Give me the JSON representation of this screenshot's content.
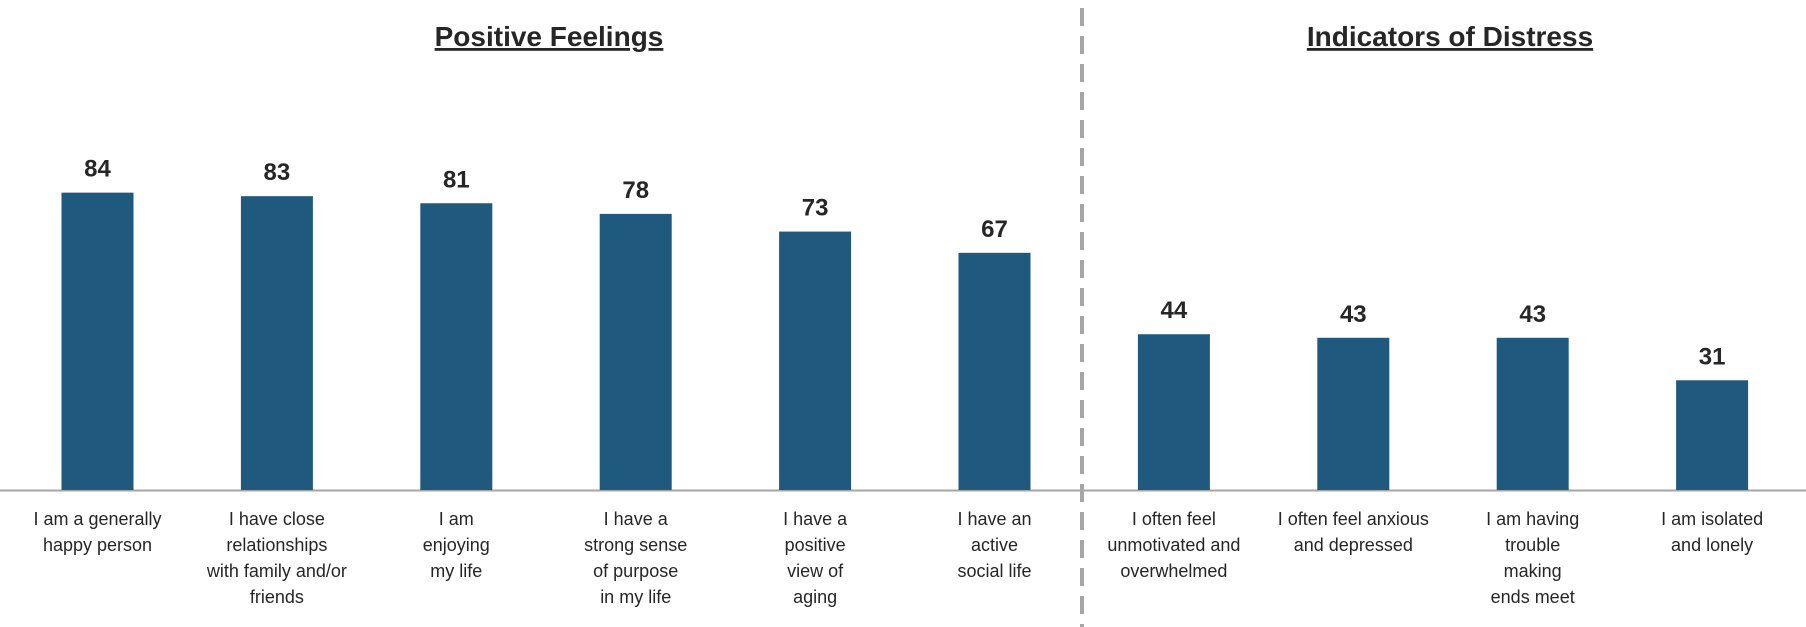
{
  "chart_data": {
    "type": "bar",
    "sections": [
      {
        "title": "Positive Feelings",
        "categories": [
          "I am a generally happy person",
          "I have close relationships with family and/or friends",
          "I am enjoying my life",
          "I have a strong sense of purpose in my life",
          "I have a positive view of aging",
          "I have an active social life"
        ],
        "category_lines": [
          [
            "I am a generally",
            "happy person"
          ],
          [
            "I have close",
            "relationships",
            "with family and/or",
            "friends"
          ],
          [
            "I am",
            "enjoying",
            "my life"
          ],
          [
            "I have a",
            "strong sense",
            "of purpose",
            "in my life"
          ],
          [
            "I have a",
            "positive",
            "view of",
            "aging"
          ],
          [
            "I have an",
            "active",
            "social life"
          ]
        ],
        "values": [
          84,
          83,
          81,
          78,
          73,
          67
        ]
      },
      {
        "title": "Indicators of Distress",
        "categories": [
          "I often feel unmotivated and overwhelmed",
          "I often feel anxious and depressed",
          "I am having trouble making ends meet",
          "I am isolated and lonely"
        ],
        "category_lines": [
          [
            "I often feel",
            "unmotivated and",
            "overwhelmed"
          ],
          [
            "I often feel anxious",
            "and depressed"
          ],
          [
            "I am having",
            "trouble",
            "making",
            "ends meet"
          ],
          [
            "I am isolated",
            "and lonely"
          ]
        ],
        "values": [
          44,
          43,
          43,
          31
        ]
      }
    ],
    "ylim": [
      0,
      100
    ],
    "bar_color": "#1f5a7e",
    "divider_color": "#a6a6a6",
    "axis_color": "#a6a6a6",
    "text_color": "#262626"
  }
}
